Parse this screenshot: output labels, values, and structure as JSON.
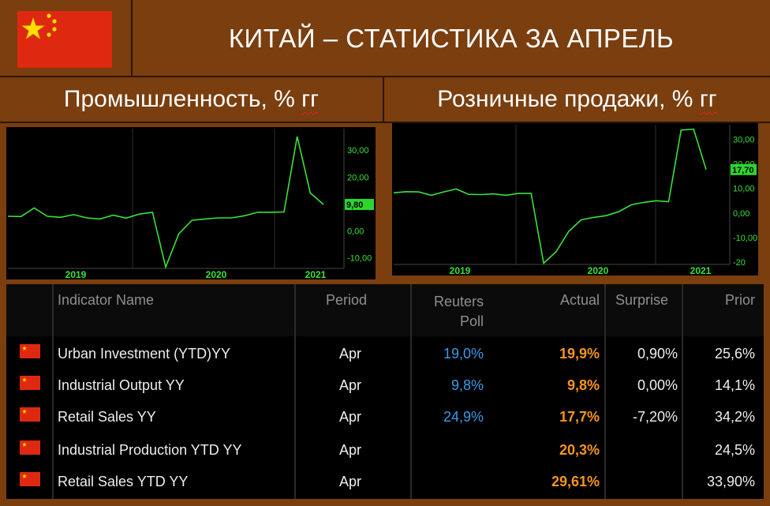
{
  "title": "КИТАЙ – СТАТИСТИКА ЗА АПРЕЛЬ",
  "subtitles": {
    "left": "Промышленность, % гг",
    "right": "Розничные продажи, % гг"
  },
  "colors": {
    "background": "#7a3e0f",
    "line": "#39e23a",
    "actual": "#f7951d",
    "poll": "#3a9be6"
  },
  "chart_data": [
    {
      "type": "line",
      "name": "Промышленность, % гг",
      "x_ticks": [
        "2019",
        "2020",
        "2021"
      ],
      "y_ticks": [
        "30,00",
        "20,00",
        "0,00",
        "-10,00"
      ],
      "last_label": "9,80",
      "ylim": [
        -14,
        38
      ],
      "values": [
        5.4,
        5.3,
        8.5,
        5.4,
        5.0,
        6.0,
        4.8,
        4.4,
        5.8,
        4.7,
        6.2,
        6.9,
        -13.5,
        -1.1,
        3.9,
        4.4,
        4.8,
        4.8,
        5.6,
        6.9,
        6.9,
        7.0,
        35.1,
        14.1,
        9.8
      ]
    },
    {
      "type": "line",
      "name": "Розничные продажи, % гг",
      "x_ticks": [
        "2019",
        "2020",
        "2021"
      ],
      "y_ticks": [
        "30,00",
        "20,00",
        "10,00",
        "0,00",
        "-10,00",
        "-20"
      ],
      "last_label": "17,70",
      "ylim": [
        -21,
        36
      ],
      "values": [
        8.2,
        8.7,
        8.6,
        7.2,
        8.6,
        9.8,
        7.6,
        7.5,
        7.8,
        7.2,
        8.0,
        8.0,
        -20.5,
        -15.8,
        -7.5,
        -2.8,
        -1.8,
        -1.1,
        0.5,
        3.3,
        4.3,
        5.0,
        4.6,
        33.8,
        34.2,
        17.7
      ]
    }
  ],
  "table": {
    "headers": [
      "Indicator Name",
      "Period",
      "Reuters Poll",
      "Actual",
      "Surprise",
      "Prior"
    ],
    "rows": [
      {
        "name": "Urban Investment (YTD)YY",
        "period": "Apr",
        "poll": "19,0%",
        "actual": "19,9%",
        "surprise": "0,90%",
        "prior": "25,6%"
      },
      {
        "name": "Industrial Output YY",
        "period": "Apr",
        "poll": "9,8%",
        "actual": "9,8%",
        "surprise": "0,00%",
        "prior": "14,1%"
      },
      {
        "name": "Retail Sales YY",
        "period": "Apr",
        "poll": "24,9%",
        "actual": "17,7%",
        "surprise": "-7,20%",
        "prior": "34,2%"
      },
      {
        "name": "Industrial Production YTD YY",
        "period": "Apr",
        "poll": "",
        "actual": "20,3%",
        "surprise": "",
        "prior": "24,5%"
      },
      {
        "name": "Retail Sales YTD YY",
        "period": "Apr",
        "poll": "",
        "actual": "29,61%",
        "surprise": "",
        "prior": "33,90%"
      }
    ]
  }
}
